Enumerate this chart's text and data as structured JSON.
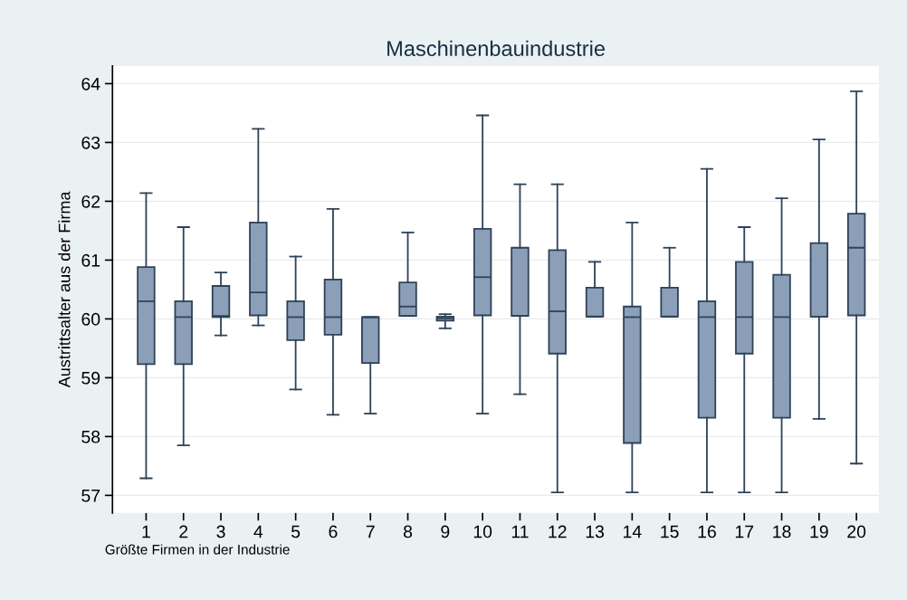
{
  "chart_data": {
    "type": "box",
    "title": "Maschinenbauindustrie",
    "xlabel": "Größte Firmen in der Industrie",
    "ylabel": "Austrittsalter aus der Firma",
    "categories": [
      "1",
      "2",
      "3",
      "4",
      "5",
      "6",
      "7",
      "8",
      "9",
      "10",
      "11",
      "12",
      "13",
      "14",
      "15",
      "16",
      "17",
      "18",
      "19",
      "20"
    ],
    "color": "#8b9fb8",
    "ylim": [
      56.7,
      64.3
    ],
    "yticks": [
      57,
      58,
      59,
      60,
      61,
      62,
      63,
      64
    ],
    "grid": "y",
    "boxes": [
      {
        "low": 57.29,
        "q1": 59.23,
        "median": 60.3,
        "q3": 60.88,
        "high": 62.14
      },
      {
        "low": 57.85,
        "q1": 59.23,
        "median": 60.03,
        "q3": 60.3,
        "high": 61.56
      },
      {
        "low": 59.72,
        "q1": 60.03,
        "median": 60.05,
        "q3": 60.56,
        "high": 60.79
      },
      {
        "low": 59.89,
        "q1": 60.06,
        "median": 60.45,
        "q3": 61.64,
        "high": 63.23
      },
      {
        "low": 58.8,
        "q1": 59.64,
        "median": 60.03,
        "q3": 60.3,
        "high": 61.06
      },
      {
        "low": 58.37,
        "q1": 59.73,
        "median": 60.03,
        "q3": 60.67,
        "high": 61.87
      },
      {
        "low": 58.39,
        "q1": 59.25,
        "median": 60.03,
        "q3": 60.03,
        "high": 60.03
      },
      {
        "low": 60.05,
        "q1": 60.05,
        "median": 60.21,
        "q3": 60.62,
        "high": 61.47
      },
      {
        "low": 59.84,
        "q1": 59.97,
        "median": 60.01,
        "q3": 60.04,
        "high": 60.08
      },
      {
        "low": 58.39,
        "q1": 60.06,
        "median": 60.71,
        "q3": 61.53,
        "high": 63.46
      },
      {
        "low": 58.72,
        "q1": 60.05,
        "median": 60.05,
        "q3": 61.21,
        "high": 62.29
      },
      {
        "low": 57.05,
        "q1": 59.41,
        "median": 60.13,
        "q3": 61.17,
        "high": 62.29
      },
      {
        "low": 60.04,
        "q1": 60.04,
        "median": 60.04,
        "q3": 60.53,
        "high": 60.97
      },
      {
        "low": 57.05,
        "q1": 57.89,
        "median": 60.03,
        "q3": 60.21,
        "high": 61.64
      },
      {
        "low": 60.04,
        "q1": 60.04,
        "median": 60.04,
        "q3": 60.53,
        "high": 61.21
      },
      {
        "low": 57.05,
        "q1": 58.32,
        "median": 60.03,
        "q3": 60.3,
        "high": 62.55
      },
      {
        "low": 57.05,
        "q1": 59.41,
        "median": 60.03,
        "q3": 60.97,
        "high": 61.56
      },
      {
        "low": 57.05,
        "q1": 58.32,
        "median": 60.03,
        "q3": 60.75,
        "high": 62.05
      },
      {
        "low": 58.3,
        "q1": 60.04,
        "median": 60.04,
        "q3": 61.29,
        "high": 63.05
      },
      {
        "low": 57.54,
        "q1": 60.06,
        "median": 61.21,
        "q3": 61.79,
        "high": 63.87
      }
    ]
  }
}
